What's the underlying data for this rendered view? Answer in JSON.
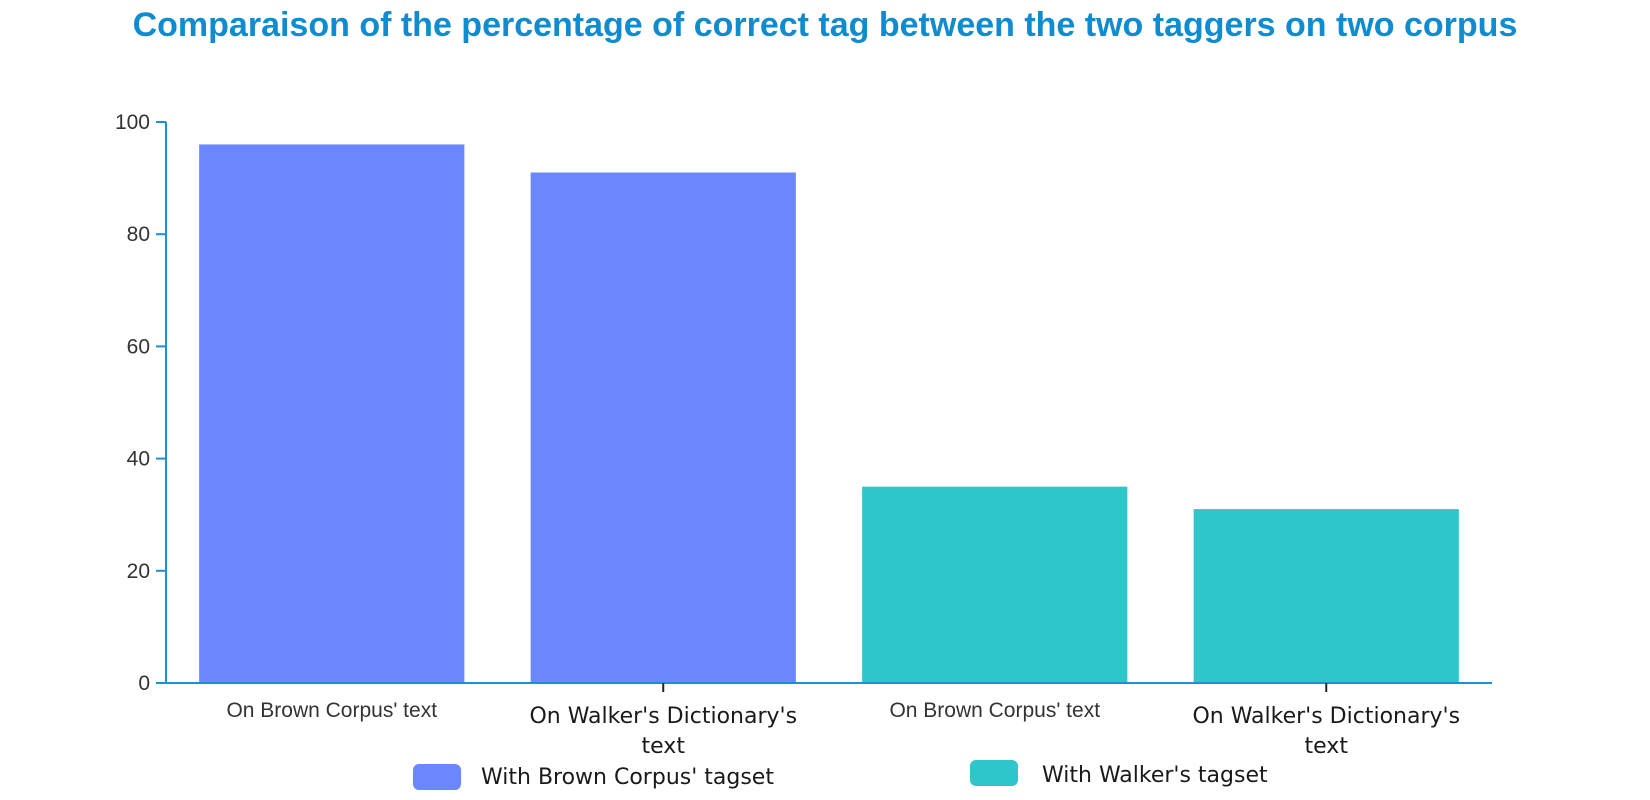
{
  "chart_data": {
    "type": "bar",
    "title": "Comparaison of the percentage of correct tag between the two taggers on two corpus",
    "xlabel": "",
    "ylabel": "",
    "ylim": [
      0,
      100
    ],
    "yticks": [
      0,
      20,
      40,
      60,
      80,
      100
    ],
    "grid": false,
    "legend_position": "bottom",
    "categories": [
      "On Brown Corpus' text",
      "On Walker's Dictionary's text",
      "On Brown Corpus' text",
      "On Walker's Dictionary's text"
    ],
    "category_lines": [
      [
        "On Brown Corpus' text"
      ],
      [
        "On Walker's Dictionary's",
        "text"
      ],
      [
        "On Brown Corpus' text"
      ],
      [
        "On Walker's Dictionary's",
        "text"
      ]
    ],
    "values": [
      96,
      91,
      35,
      31
    ],
    "bar_series": [
      0,
      0,
      1,
      1
    ],
    "series": [
      {
        "name": "With Brown Corpus' tagset",
        "color": "#6b87ff"
      },
      {
        "name": "With Walker's tagset",
        "color": "#2ec6c9"
      }
    ],
    "colors": {
      "title": "#0f8bd0",
      "axis": "#1f8fcf"
    }
  }
}
